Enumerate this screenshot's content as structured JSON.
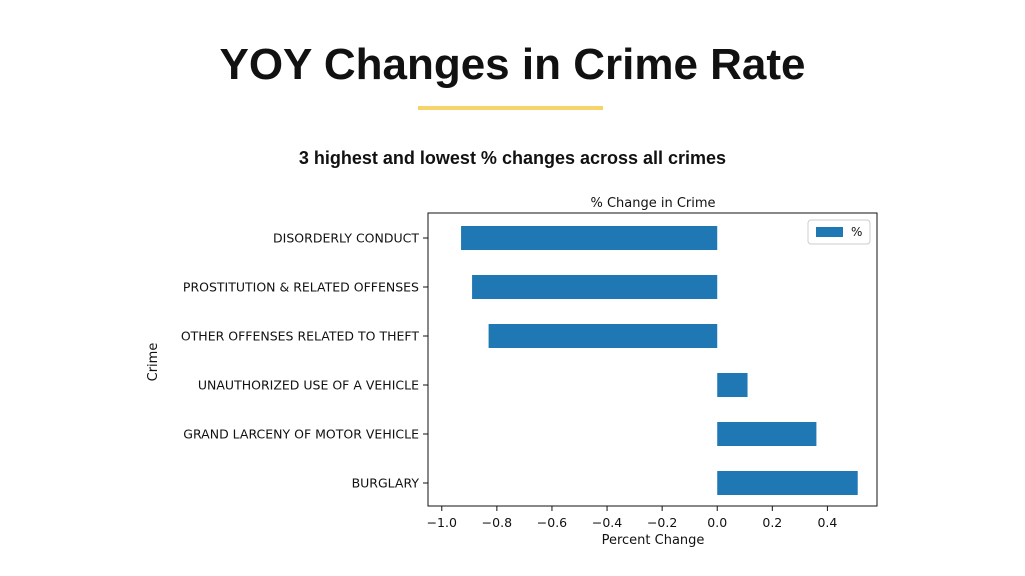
{
  "slide": {
    "title": "YOY Changes in Crime Rate",
    "subtitle": "3 highest and lowest % changes across all crimes"
  },
  "colors": {
    "bar": "#1f77b4",
    "underline": "#f7d36b"
  },
  "chart_data": {
    "type": "bar",
    "orientation": "horizontal",
    "title": "% Change in Crime",
    "xlabel": "Percent Change",
    "ylabel": "Crime",
    "categories": [
      "DISORDERLY CONDUCT",
      "PROSTITUTION & RELATED OFFENSES",
      "OTHER OFFENSES RELATED TO THEFT",
      "UNAUTHORIZED USE OF A VEHICLE",
      "GRAND LARCENY OF MOTOR VEHICLE",
      "BURGLARY"
    ],
    "series": [
      {
        "name": "%",
        "values": [
          -0.93,
          -0.89,
          -0.83,
          0.11,
          0.36,
          0.51
        ]
      }
    ],
    "xlim": [
      -1.05,
      0.58
    ],
    "xticks": [
      -1.0,
      -0.8,
      -0.6,
      -0.4,
      -0.2,
      0.0,
      0.2,
      0.4
    ],
    "xtick_labels": [
      "−1.0",
      "−0.8",
      "−0.6",
      "−0.4",
      "−0.2",
      "0.0",
      "0.2",
      "0.4"
    ],
    "grid": false,
    "legend": "top-right"
  }
}
